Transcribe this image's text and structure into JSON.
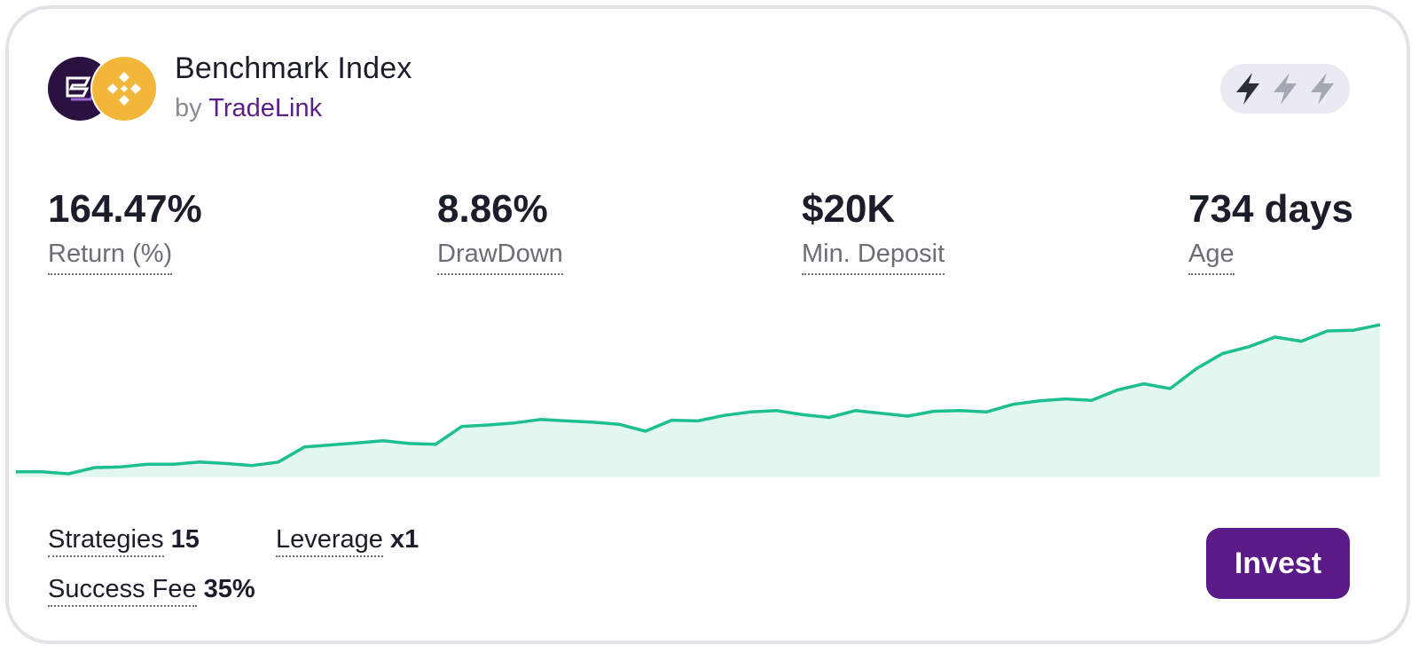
{
  "card": {
    "title": "Benchmark Index",
    "by_prefix": "by",
    "by_brand": "TradeLink",
    "icons": [
      "platform-logo-icon",
      "binance-coin-icon"
    ],
    "risk_level": {
      "filled": 1,
      "total": 3,
      "icon": "lightning-bolt-icon"
    }
  },
  "stats": [
    {
      "value": "164.47%",
      "label": "Return (%)"
    },
    {
      "value": "8.86%",
      "label": "DrawDown"
    },
    {
      "value": "$20K",
      "label": "Min. Deposit"
    },
    {
      "value": "734 days",
      "label": "Age"
    }
  ],
  "chart_data": {
    "type": "area",
    "x": [
      0,
      14,
      28,
      42,
      56,
      70,
      84,
      98,
      112,
      126,
      140,
      154,
      168,
      182,
      196,
      210,
      224,
      238,
      252,
      266,
      280,
      294,
      308,
      322,
      336,
      350,
      364,
      378,
      392,
      406,
      420,
      434,
      448,
      462,
      476,
      490,
      504,
      518,
      532,
      546,
      560,
      574,
      588,
      602,
      616,
      630,
      644,
      658,
      672,
      686,
      700,
      714,
      728
    ],
    "y": [
      0,
      0,
      -0.3,
      0.6,
      0.7,
      1.1,
      1.1,
      1.4,
      1.2,
      0.9,
      1.4,
      3.6,
      3.9,
      4.2,
      4.5,
      4.1,
      4.0,
      6.6,
      6.8,
      7.1,
      7.6,
      7.4,
      7.2,
      6.9,
      5.9,
      7.5,
      7.4,
      8.2,
      8.7,
      8.9,
      8.3,
      7.9,
      8.9,
      8.5,
      8.1,
      8.8,
      8.9,
      8.7,
      9.8,
      10.3,
      10.6,
      10.4,
      11.9,
      12.8,
      12.1,
      15.0,
      17.2,
      18.2,
      19.6,
      19.0,
      20.5,
      20.6,
      21.4
    ],
    "colors": {
      "line": "#1dbf8e",
      "fill": "#e2f7f0"
    },
    "grid": false,
    "axes_visible": false
  },
  "metrics": {
    "strategies": {
      "label": "Strategies",
      "value": "15"
    },
    "leverage": {
      "label": "Leverage",
      "value": "x1"
    },
    "success_fee": {
      "label": "Success Fee",
      "value": "35%"
    }
  },
  "actions": {
    "invest_label": "Invest"
  },
  "colors": {
    "accent": "#5a1a87",
    "brand_text": "#5a1f8a",
    "binance": "#f2b63a"
  }
}
